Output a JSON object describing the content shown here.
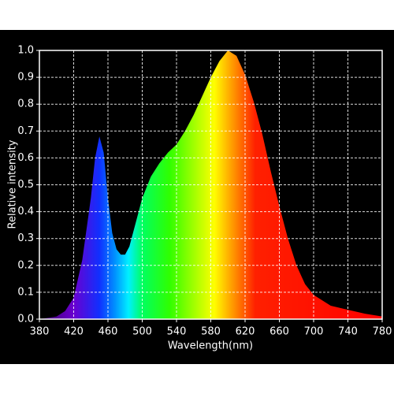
{
  "chart_data": {
    "type": "area",
    "x_label": "Wavelength(nm)",
    "y_label": "Relative intensity",
    "x": [
      380,
      390,
      400,
      410,
      420,
      430,
      440,
      445,
      450,
      455,
      460,
      465,
      470,
      475,
      480,
      485,
      490,
      500,
      510,
      520,
      530,
      540,
      550,
      560,
      570,
      580,
      590,
      600,
      610,
      620,
      630,
      640,
      650,
      660,
      670,
      680,
      690,
      700,
      720,
      740,
      760,
      780
    ],
    "values": [
      0,
      0.005,
      0.01,
      0.03,
      0.08,
      0.22,
      0.45,
      0.6,
      0.68,
      0.62,
      0.45,
      0.32,
      0.26,
      0.24,
      0.24,
      0.27,
      0.33,
      0.45,
      0.53,
      0.58,
      0.62,
      0.65,
      0.7,
      0.76,
      0.83,
      0.9,
      0.96,
      1.0,
      0.98,
      0.91,
      0.81,
      0.69,
      0.55,
      0.42,
      0.3,
      0.2,
      0.13,
      0.09,
      0.05,
      0.035,
      0.02,
      0.01
    ],
    "xlim": [
      380,
      780
    ],
    "xticks": [
      380,
      420,
      460,
      500,
      540,
      580,
      620,
      660,
      700,
      740,
      780
    ],
    "ylim": [
      0,
      1
    ],
    "yticks": [
      {
        "value": 0,
        "label": "0.0"
      },
      0.1,
      0.2,
      0.3,
      0.4,
      0.5,
      0.6,
      0.7,
      0.8,
      0.9,
      {
        "value": 1,
        "label": "1.0"
      }
    ],
    "grid": true
  }
}
